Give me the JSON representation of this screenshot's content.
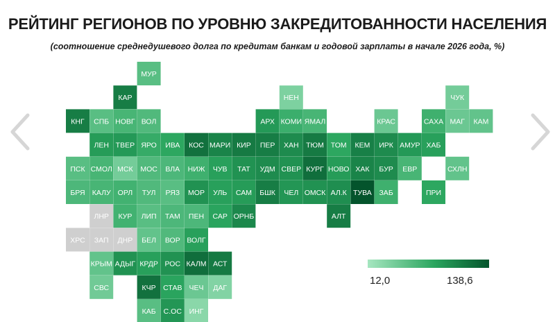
{
  "title": "РЕЙТИНГ РЕГИОНОВ ПО УРОВНЮ ЗАКРЕДИТОВАННОСТИ НАСЕЛЕНИЯ",
  "subtitle": "(соотношение среднедушевого долга по кредитам банкам и годовой зарплаты в начале 2026 года, %)",
  "colors": {
    "scale_low": "#a6e6c0",
    "scale_mid": "#2aa55e",
    "scale_high": "#04542c",
    "no_data": "#cfcfcf",
    "nav_arrow": "#d6d6d6"
  },
  "navigation": {
    "prev_icon": "chevron-left-icon",
    "next_icon": "chevron-right-icon"
  },
  "legend": {
    "min_label": "12,0",
    "max_label": "138,6"
  },
  "chart_data": {
    "type": "heatmap",
    "title": "РЕЙТИНГ РЕГИОНОВ ПО УРОВНЮ ЗАКРЕДИТОВАННОСТИ НАСЕЛЕНИЯ",
    "subtitle": "(соотношение среднедушевого долга по кредитам банкам и годовой зарплаты в начале 2026 года, %)",
    "scale": {
      "min": 12.0,
      "max": 138.6
    },
    "cells": [
      {
        "label": "МУР",
        "col": 3,
        "row": 0,
        "value": 55
      },
      {
        "label": "КАР",
        "col": 2,
        "row": 1,
        "value": 110
      },
      {
        "label": "НЕН",
        "col": 9,
        "row": 1,
        "value": 35
      },
      {
        "label": "ЧУК",
        "col": 16,
        "row": 1,
        "value": 40
      },
      {
        "label": "КНГ",
        "col": 0,
        "row": 2,
        "value": 110
      },
      {
        "label": "СПБ",
        "col": 1,
        "row": 2,
        "value": 55
      },
      {
        "label": "НОВГ",
        "col": 2,
        "row": 2,
        "value": 65
      },
      {
        "label": "ВОЛ",
        "col": 3,
        "row": 2,
        "value": 60
      },
      {
        "label": "АРХ",
        "col": 8,
        "row": 2,
        "value": 90
      },
      {
        "label": "КОМИ",
        "col": 9,
        "row": 2,
        "value": 72
      },
      {
        "label": "ЯМАЛ",
        "col": 10,
        "row": 2,
        "value": 65
      },
      {
        "label": "КРАС",
        "col": 13,
        "row": 2,
        "value": 45
      },
      {
        "label": "САХА",
        "col": 15,
        "row": 2,
        "value": 70
      },
      {
        "label": "МАГ",
        "col": 16,
        "row": 2,
        "value": 45
      },
      {
        "label": "КАМ",
        "col": 17,
        "row": 2,
        "value": 50
      },
      {
        "label": "ЛЕН",
        "col": 1,
        "row": 3,
        "value": 88
      },
      {
        "label": "ТВЕР",
        "col": 2,
        "row": 3,
        "value": 90
      },
      {
        "label": "ЯРО",
        "col": 3,
        "row": 3,
        "value": 75
      },
      {
        "label": "ИВА",
        "col": 4,
        "row": 3,
        "value": 80
      },
      {
        "label": "КОС",
        "col": 5,
        "row": 3,
        "value": 118
      },
      {
        "label": "МАРИ",
        "col": 6,
        "row": 3,
        "value": 105
      },
      {
        "label": "КИР",
        "col": 7,
        "row": 3,
        "value": 112
      },
      {
        "label": "ПЕР",
        "col": 8,
        "row": 3,
        "value": 110
      },
      {
        "label": "ХАН",
        "col": 9,
        "row": 3,
        "value": 100
      },
      {
        "label": "ТЮМ",
        "col": 10,
        "row": 3,
        "value": 112
      },
      {
        "label": "ТОМ",
        "col": 11,
        "row": 3,
        "value": 80
      },
      {
        "label": "КЕМ",
        "col": 12,
        "row": 3,
        "value": 108
      },
      {
        "label": "ИРК",
        "col": 13,
        "row": 3,
        "value": 100
      },
      {
        "label": "АМУР",
        "col": 14,
        "row": 3,
        "value": 90
      },
      {
        "label": "ХАБ",
        "col": 15,
        "row": 3,
        "value": 85
      },
      {
        "label": "ПСК",
        "col": 0,
        "row": 4,
        "value": 55
      },
      {
        "label": "СМОЛ",
        "col": 1,
        "row": 4,
        "value": 65
      },
      {
        "label": "МСК",
        "col": 2,
        "row": 4,
        "value": 40
      },
      {
        "label": "МОС",
        "col": 3,
        "row": 4,
        "value": 60
      },
      {
        "label": "ВЛА",
        "col": 4,
        "row": 4,
        "value": 62
      },
      {
        "label": "НИЖ",
        "col": 5,
        "row": 4,
        "value": 70
      },
      {
        "label": "ЧУВ",
        "col": 6,
        "row": 4,
        "value": 85
      },
      {
        "label": "ТАТ",
        "col": 7,
        "row": 4,
        "value": 95
      },
      {
        "label": "УДМ",
        "col": 8,
        "row": 4,
        "value": 100
      },
      {
        "label": "СВЕР",
        "col": 9,
        "row": 4,
        "value": 95
      },
      {
        "label": "КУРГ",
        "col": 10,
        "row": 4,
        "value": 120
      },
      {
        "label": "НОВО",
        "col": 11,
        "row": 4,
        "value": 88
      },
      {
        "label": "ХАК",
        "col": 12,
        "row": 4,
        "value": 105
      },
      {
        "label": "БУР",
        "col": 13,
        "row": 4,
        "value": 100
      },
      {
        "label": "ЕВР",
        "col": 14,
        "row": 4,
        "value": 65
      },
      {
        "label": "СХЛН",
        "col": 16,
        "row": 4,
        "value": 50
      },
      {
        "label": "БРЯ",
        "col": 0,
        "row": 5,
        "value": 62
      },
      {
        "label": "КАЛУ",
        "col": 1,
        "row": 5,
        "value": 65
      },
      {
        "label": "ОРЛ",
        "col": 2,
        "row": 5,
        "value": 68
      },
      {
        "label": "ТУЛ",
        "col": 3,
        "row": 5,
        "value": 60
      },
      {
        "label": "РЯЗ",
        "col": 4,
        "row": 5,
        "value": 55
      },
      {
        "label": "МОР",
        "col": 5,
        "row": 5,
        "value": 95
      },
      {
        "label": "УЛЬ",
        "col": 6,
        "row": 5,
        "value": 85
      },
      {
        "label": "САМ",
        "col": 7,
        "row": 5,
        "value": 88
      },
      {
        "label": "БШК",
        "col": 8,
        "row": 5,
        "value": 110
      },
      {
        "label": "ЧЕЛ",
        "col": 9,
        "row": 5,
        "value": 92
      },
      {
        "label": "ОМСК",
        "col": 10,
        "row": 5,
        "value": 95
      },
      {
        "label": "АЛ.К",
        "col": 11,
        "row": 5,
        "value": 98
      },
      {
        "label": "ТУВА",
        "col": 12,
        "row": 5,
        "value": 138.6
      },
      {
        "label": "ЗАБ",
        "col": 13,
        "row": 5,
        "value": 70
      },
      {
        "label": "ПРИ",
        "col": 15,
        "row": 5,
        "value": 80
      },
      {
        "label": "ЛНР",
        "col": 1,
        "row": 6,
        "value": null
      },
      {
        "label": "КУР",
        "col": 2,
        "row": 6,
        "value": 68
      },
      {
        "label": "ЛИП",
        "col": 3,
        "row": 6,
        "value": 55
      },
      {
        "label": "ТАМ",
        "col": 4,
        "row": 6,
        "value": 62
      },
      {
        "label": "ПЕН",
        "col": 5,
        "row": 6,
        "value": 62
      },
      {
        "label": "САР",
        "col": 6,
        "row": 6,
        "value": 82
      },
      {
        "label": "ОРНБ",
        "col": 7,
        "row": 6,
        "value": 102
      },
      {
        "label": "АЛТ",
        "col": 11,
        "row": 6,
        "value": 110
      },
      {
        "label": "ХРС",
        "col": 0,
        "row": 7,
        "value": null
      },
      {
        "label": "ЗАП",
        "col": 1,
        "row": 7,
        "value": null
      },
      {
        "label": "ДНР",
        "col": 2,
        "row": 7,
        "value": null
      },
      {
        "label": "БЕЛ",
        "col": 3,
        "row": 7,
        "value": 50
      },
      {
        "label": "ВОР",
        "col": 4,
        "row": 7,
        "value": 60
      },
      {
        "label": "ВОЛГ",
        "col": 5,
        "row": 7,
        "value": 85
      },
      {
        "label": "КРЫМ",
        "col": 1,
        "row": 8,
        "value": 50
      },
      {
        "label": "АДЫГ",
        "col": 2,
        "row": 8,
        "value": 95
      },
      {
        "label": "КРДР",
        "col": 3,
        "row": 8,
        "value": 85
      },
      {
        "label": "РОС",
        "col": 4,
        "row": 8,
        "value": 95
      },
      {
        "label": "КАЛМ",
        "col": 5,
        "row": 8,
        "value": 120
      },
      {
        "label": "АСТ",
        "col": 6,
        "row": 8,
        "value": 112
      },
      {
        "label": "СВС",
        "col": 1,
        "row": 9,
        "value": 42
      },
      {
        "label": "КЧР",
        "col": 3,
        "row": 9,
        "value": 118
      },
      {
        "label": "СТАВ",
        "col": 4,
        "row": 9,
        "value": 82
      },
      {
        "label": "ЧЕЧ",
        "col": 5,
        "row": 9,
        "value": 45
      },
      {
        "label": "ДАГ",
        "col": 6,
        "row": 9,
        "value": 32
      },
      {
        "label": "КАБ",
        "col": 3,
        "row": 10,
        "value": 55
      },
      {
        "label": "С.ОС",
        "col": 4,
        "row": 10,
        "value": 92
      },
      {
        "label": "ИНГ",
        "col": 5,
        "row": 10,
        "value": 28
      }
    ]
  }
}
